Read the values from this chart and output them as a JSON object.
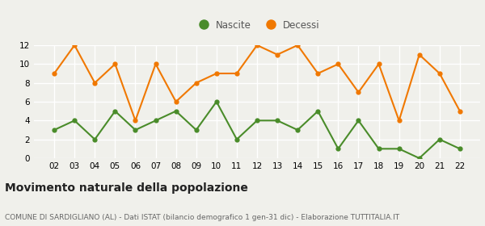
{
  "years": [
    2,
    3,
    4,
    5,
    6,
    7,
    8,
    9,
    10,
    11,
    12,
    13,
    14,
    15,
    16,
    17,
    18,
    19,
    20,
    21,
    22
  ],
  "nascite": [
    3,
    4,
    2,
    5,
    3,
    4,
    5,
    3,
    6,
    2,
    4,
    4,
    3,
    5,
    1,
    4,
    1,
    1,
    0,
    2,
    1
  ],
  "decessi": [
    9,
    12,
    8,
    10,
    4,
    10,
    6,
    8,
    9,
    9,
    12,
    11,
    12,
    9,
    10,
    7,
    10,
    4,
    11,
    9,
    5
  ],
  "nascite_color": "#4a8c2a",
  "decessi_color": "#f07800",
  "background_color": "#f0f0eb",
  "grid_color": "#ffffff",
  "ylim": [
    0,
    12
  ],
  "yticks": [
    0,
    2,
    4,
    6,
    8,
    10,
    12
  ],
  "title": "Movimento naturale della popolazione",
  "subtitle": "COMUNE DI SARDIGLIANO (AL) - Dati ISTAT (bilancio demografico 1 gen-31 dic) - Elaborazione TUTTITALIA.IT",
  "legend_nascite": "Nascite",
  "legend_decessi": "Decessi",
  "title_fontsize": 10,
  "subtitle_fontsize": 6.5,
  "tick_fontsize": 7.5,
  "marker_size": 4.5,
  "line_width": 1.5
}
